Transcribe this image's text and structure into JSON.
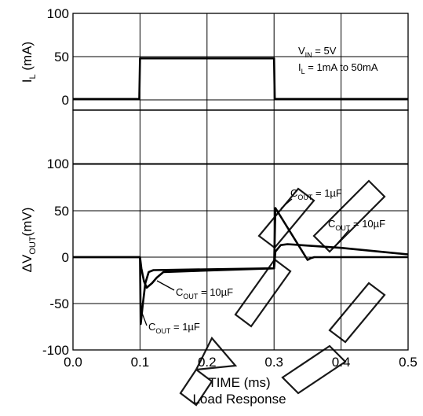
{
  "chart_data": [
    {
      "type": "line",
      "title": "",
      "ylabel": "I",
      "ylabel_sub": "L",
      "ylabel_unit": " (mA)",
      "xlim": [
        0.0,
        0.5
      ],
      "ylim": [
        -10,
        100
      ],
      "yticks": [
        "100",
        "50",
        "0"
      ],
      "yticks_values": [
        100,
        50,
        0
      ],
      "annotation_lines": [
        {
          "main": "V",
          "sub": "IN",
          "rest": " = 5V"
        },
        {
          "main": "I",
          "sub": "L",
          "rest": " = 1mA to 50mA"
        }
      ],
      "series": [
        {
          "x": [
            0.0,
            0.099,
            0.1,
            0.3,
            0.301,
            0.5
          ],
          "y": [
            1,
            1,
            48,
            48,
            1,
            1
          ]
        }
      ]
    },
    {
      "type": "line",
      "title": "Load Response",
      "xlabel": "TIME (ms)",
      "ylabel": "ΔV",
      "ylabel_sub": "OUT",
      "ylabel_unit": "(mV)",
      "xlim": [
        0.0,
        0.5
      ],
      "ylim": [
        -100,
        100
      ],
      "xticks": [
        "0.0",
        "0.1",
        "0.2",
        "0.3",
        "0.4",
        "0.5"
      ],
      "yticks": [
        "100",
        "50",
        "0",
        "-50",
        "-100"
      ],
      "yticks_values": [
        100,
        50,
        0,
        -50,
        -100
      ],
      "series": [
        {
          "name": "C_OUT = 1µF",
          "x": [
            0.0,
            0.1,
            0.101,
            0.104,
            0.108,
            0.113,
            0.12,
            0.3,
            0.302,
            0.35,
            0.355,
            0.36,
            0.5
          ],
          "y": [
            0,
            0,
            -72,
            -52,
            -28,
            -16,
            -14,
            -12,
            53,
            -3,
            -1,
            0,
            0
          ]
        },
        {
          "name": "C_OUT = 10µF",
          "x": [
            0.0,
            0.1,
            0.102,
            0.106,
            0.11,
            0.118,
            0.125,
            0.135,
            0.3,
            0.302,
            0.31,
            0.32,
            0.4,
            0.5
          ],
          "y": [
            0,
            0,
            -12,
            -26,
            -33,
            -28,
            -22,
            -16,
            -12,
            6,
            13,
            14,
            10,
            3
          ]
        }
      ],
      "annotations": [
        {
          "main": "C",
          "sub": "OUT",
          "rest": " = 1µF"
        },
        {
          "main": "C",
          "sub": "OUT",
          "rest": " = 10µF"
        },
        {
          "main": "C",
          "sub": "OUT",
          "rest": " = 10µF"
        },
        {
          "main": "C",
          "sub": "OUT",
          "rest": " = 1µF"
        }
      ]
    }
  ]
}
